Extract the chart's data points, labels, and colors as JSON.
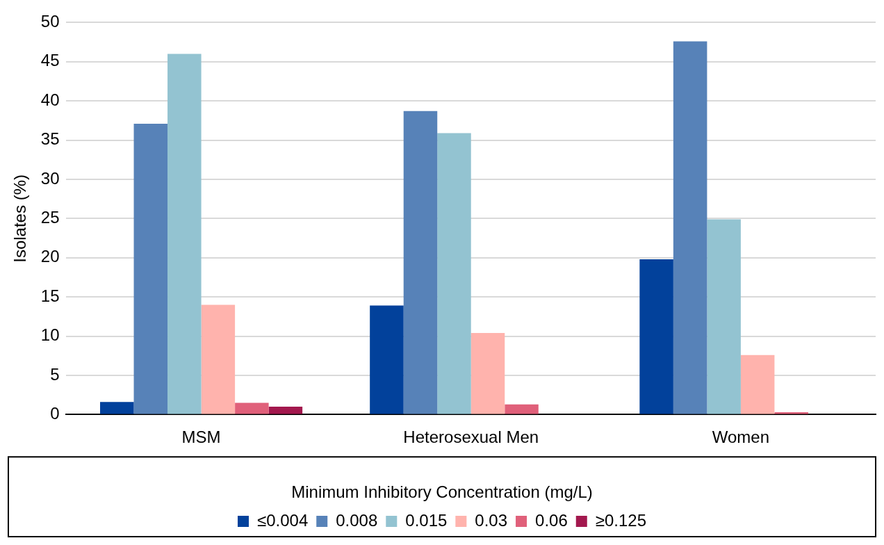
{
  "chart_data": {
    "type": "bar",
    "ylabel": "Isolates (%)",
    "legend_title": "Minimum Inhibitory Concentration (mg/L)",
    "categories": [
      "MSM",
      "Heterosexual Men",
      "Women"
    ],
    "series": [
      {
        "name": "≤0.004",
        "color": "#02419b",
        "values": [
          1.6,
          13.9,
          19.8
        ]
      },
      {
        "name": "0.008",
        "color": "#5782b8",
        "values": [
          37.1,
          38.7,
          47.6
        ]
      },
      {
        "name": "0.015",
        "color": "#93c3d1",
        "values": [
          46.0,
          35.9,
          24.9
        ]
      },
      {
        "name": "0.03",
        "color": "#ffb3ad",
        "values": [
          14.0,
          10.4,
          7.6
        ]
      },
      {
        "name": "0.06",
        "color": "#e0607a",
        "values": [
          1.5,
          1.3,
          0.3
        ]
      },
      {
        "name": "≥0.125",
        "color": "#a3184e",
        "values": [
          1.0,
          0,
          0
        ]
      }
    ],
    "ylim": [
      0,
      50
    ],
    "yticks": [
      0,
      5,
      10,
      15,
      20,
      25,
      30,
      35,
      40,
      45,
      50
    ],
    "grid": "y",
    "legend": "bottom"
  }
}
